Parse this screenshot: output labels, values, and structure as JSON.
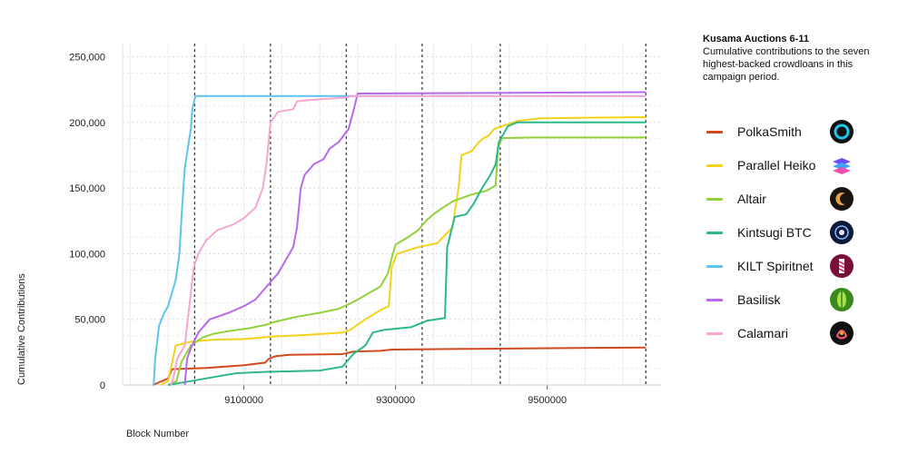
{
  "info": {
    "title": "Kusama Auctions 6-11",
    "subtitle": "Cumulative contributions to the seven highest-backed crowdloans in this campaign period."
  },
  "chart_data": {
    "type": "line",
    "title": "Kusama Auctions 6-11",
    "subtitle": "Cumulative contributions to the seven highest-backed crowdloans in this campaign period.",
    "xlabel": "Block Number",
    "ylabel": "Cumulative Contributions",
    "xlim": [
      8940000,
      9650000
    ],
    "ylim": [
      0,
      260000
    ],
    "xticks": [
      9100000,
      9300000,
      9500000
    ],
    "yticks": [
      0,
      50000,
      100000,
      150000,
      200000,
      250000
    ],
    "x_tick_labels": [
      "9100000",
      "9300000",
      "9500000"
    ],
    "y_tick_labels": [
      "0",
      "50,000",
      "100,000",
      "150,000",
      "200,000",
      "250,000"
    ],
    "auction_boundaries": [
      9035000,
      9135000,
      9235000,
      9335000,
      9438000,
      9630000
    ],
    "grid": true,
    "legend_position": "right",
    "series": [
      {
        "name": "PolkaSmith",
        "color": "#d2491f",
        "icon": "polkasmith-logo-icon",
        "points": [
          [
            8980000,
            0
          ],
          [
            9000000,
            5000
          ],
          [
            9005000,
            12000
          ],
          [
            9050000,
            13000
          ],
          [
            9100000,
            15000
          ],
          [
            9128000,
            17000
          ],
          [
            9133000,
            20000
          ],
          [
            9142000,
            22000
          ],
          [
            9160000,
            23000
          ],
          [
            9230000,
            23500
          ],
          [
            9245000,
            25500
          ],
          [
            9280000,
            26000
          ],
          [
            9295000,
            27000
          ],
          [
            9400000,
            27500
          ],
          [
            9500000,
            28000
          ],
          [
            9630000,
            28500
          ]
        ]
      },
      {
        "name": "Parallel Heiko",
        "color": "#f4d21a",
        "icon": "parallel-heiko-logo-icon",
        "points": [
          [
            8990000,
            0
          ],
          [
            9000000,
            3000
          ],
          [
            9010000,
            30000
          ],
          [
            9030000,
            33000
          ],
          [
            9060000,
            34500
          ],
          [
            9100000,
            35000
          ],
          [
            9140000,
            37000
          ],
          [
            9180000,
            38000
          ],
          [
            9230000,
            40000
          ],
          [
            9240000,
            42000
          ],
          [
            9260000,
            50000
          ],
          [
            9280000,
            57000
          ],
          [
            9291000,
            60000
          ],
          [
            9295000,
            90000
          ],
          [
            9302000,
            100000
          ],
          [
            9330000,
            105000
          ],
          [
            9355000,
            108000
          ],
          [
            9375000,
            120000
          ],
          [
            9383000,
            150000
          ],
          [
            9387000,
            175000
          ],
          [
            9400000,
            178000
          ],
          [
            9410000,
            185000
          ],
          [
            9416000,
            188000
          ],
          [
            9423000,
            190000
          ],
          [
            9430000,
            195000
          ],
          [
            9445000,
            198000
          ],
          [
            9460000,
            201000
          ],
          [
            9490000,
            203000
          ],
          [
            9540000,
            203500
          ],
          [
            9630000,
            204000
          ]
        ]
      },
      {
        "name": "Altair",
        "color": "#93d13b",
        "icon": "altair-logo-icon",
        "points": [
          [
            9000000,
            0
          ],
          [
            9011000,
            3000
          ],
          [
            9018000,
            18000
          ],
          [
            9030000,
            30000
          ],
          [
            9045000,
            36000
          ],
          [
            9060000,
            39000
          ],
          [
            9080000,
            41000
          ],
          [
            9105000,
            43000
          ],
          [
            9130000,
            46000
          ],
          [
            9140000,
            48000
          ],
          [
            9170000,
            52000
          ],
          [
            9200000,
            55000
          ],
          [
            9225000,
            58000
          ],
          [
            9240000,
            62000
          ],
          [
            9250000,
            65000
          ],
          [
            9265000,
            70000
          ],
          [
            9280000,
            75000
          ],
          [
            9285000,
            80000
          ],
          [
            9290000,
            85000
          ],
          [
            9295000,
            97000
          ],
          [
            9300000,
            107000
          ],
          [
            9315000,
            112000
          ],
          [
            9330000,
            118000
          ],
          [
            9340000,
            125000
          ],
          [
            9350000,
            130000
          ],
          [
            9362000,
            135000
          ],
          [
            9376000,
            140000
          ],
          [
            9400000,
            145000
          ],
          [
            9420000,
            148000
          ],
          [
            9432000,
            152000
          ],
          [
            9435000,
            180000
          ],
          [
            9440000,
            188000
          ],
          [
            9480000,
            188500
          ],
          [
            9630000,
            188500
          ]
        ]
      },
      {
        "name": "Kintsugi BTC",
        "color": "#2db88a",
        "icon": "kintsugi-btc-logo-icon",
        "points": [
          [
            9000000,
            0
          ],
          [
            9030000,
            3000
          ],
          [
            9060000,
            6000
          ],
          [
            9090000,
            9000
          ],
          [
            9130000,
            10000
          ],
          [
            9200000,
            11000
          ],
          [
            9230000,
            14000
          ],
          [
            9245000,
            24000
          ],
          [
            9260000,
            30000
          ],
          [
            9270000,
            40000
          ],
          [
            9285000,
            42000
          ],
          [
            9320000,
            44000
          ],
          [
            9342000,
            49000
          ],
          [
            9365000,
            51000
          ],
          [
            9368000,
            105000
          ],
          [
            9378000,
            128000
          ],
          [
            9393000,
            130000
          ],
          [
            9403000,
            138000
          ],
          [
            9414000,
            150000
          ],
          [
            9425000,
            160000
          ],
          [
            9432000,
            168000
          ],
          [
            9436000,
            185000
          ],
          [
            9448000,
            197000
          ],
          [
            9460000,
            200000
          ],
          [
            9630000,
            200000
          ]
        ]
      },
      {
        "name": "KILT Spiritnet",
        "color": "#5cc4ef",
        "icon": "kilt-spiritnet-logo-icon",
        "points": [
          [
            8981000,
            0
          ],
          [
            8983000,
            20000
          ],
          [
            8988000,
            45000
          ],
          [
            8995000,
            55000
          ],
          [
            9000000,
            60000
          ],
          [
            9005000,
            70000
          ],
          [
            9010000,
            80000
          ],
          [
            9015000,
            100000
          ],
          [
            9018000,
            130000
          ],
          [
            9022000,
            165000
          ],
          [
            9026000,
            180000
          ],
          [
            9030000,
            195000
          ],
          [
            9032000,
            210000
          ],
          [
            9036000,
            220000
          ],
          [
            9630000,
            220000
          ]
        ]
      },
      {
        "name": "Basilisk",
        "color": "#b869ea",
        "icon": "basilisk-logo-icon",
        "points": [
          [
            9022000,
            0
          ],
          [
            9025000,
            20000
          ],
          [
            9030000,
            28000
          ],
          [
            9040000,
            40000
          ],
          [
            9055000,
            50000
          ],
          [
            9080000,
            55000
          ],
          [
            9100000,
            60000
          ],
          [
            9115000,
            65000
          ],
          [
            9130000,
            75000
          ],
          [
            9145000,
            85000
          ],
          [
            9155000,
            95000
          ],
          [
            9165000,
            105000
          ],
          [
            9170000,
            120000
          ],
          [
            9175000,
            150000
          ],
          [
            9180000,
            160000
          ],
          [
            9192000,
            168000
          ],
          [
            9205000,
            172000
          ],
          [
            9213000,
            180000
          ],
          [
            9225000,
            185000
          ],
          [
            9238000,
            195000
          ],
          [
            9245000,
            210000
          ],
          [
            9250000,
            222000
          ],
          [
            9630000,
            223000
          ]
        ]
      },
      {
        "name": "Calamari",
        "color": "#f7a6d2",
        "icon": "calamari-logo-icon",
        "points": [
          [
            9004000,
            0
          ],
          [
            9008000,
            8000
          ],
          [
            9012000,
            20000
          ],
          [
            9017000,
            25000
          ],
          [
            9022000,
            30000
          ],
          [
            9030000,
            70000
          ],
          [
            9034000,
            90000
          ],
          [
            9040000,
            100000
          ],
          [
            9050000,
            110000
          ],
          [
            9065000,
            118000
          ],
          [
            9085000,
            122000
          ],
          [
            9100000,
            127000
          ],
          [
            9115000,
            135000
          ],
          [
            9125000,
            150000
          ],
          [
            9130000,
            170000
          ],
          [
            9135000,
            200000
          ],
          [
            9145000,
            208000
          ],
          [
            9165000,
            210000
          ],
          [
            9170000,
            216000
          ],
          [
            9185000,
            217000
          ],
          [
            9210000,
            218000
          ],
          [
            9236000,
            219000
          ],
          [
            9240000,
            220000
          ],
          [
            9630000,
            220000
          ]
        ]
      }
    ]
  }
}
